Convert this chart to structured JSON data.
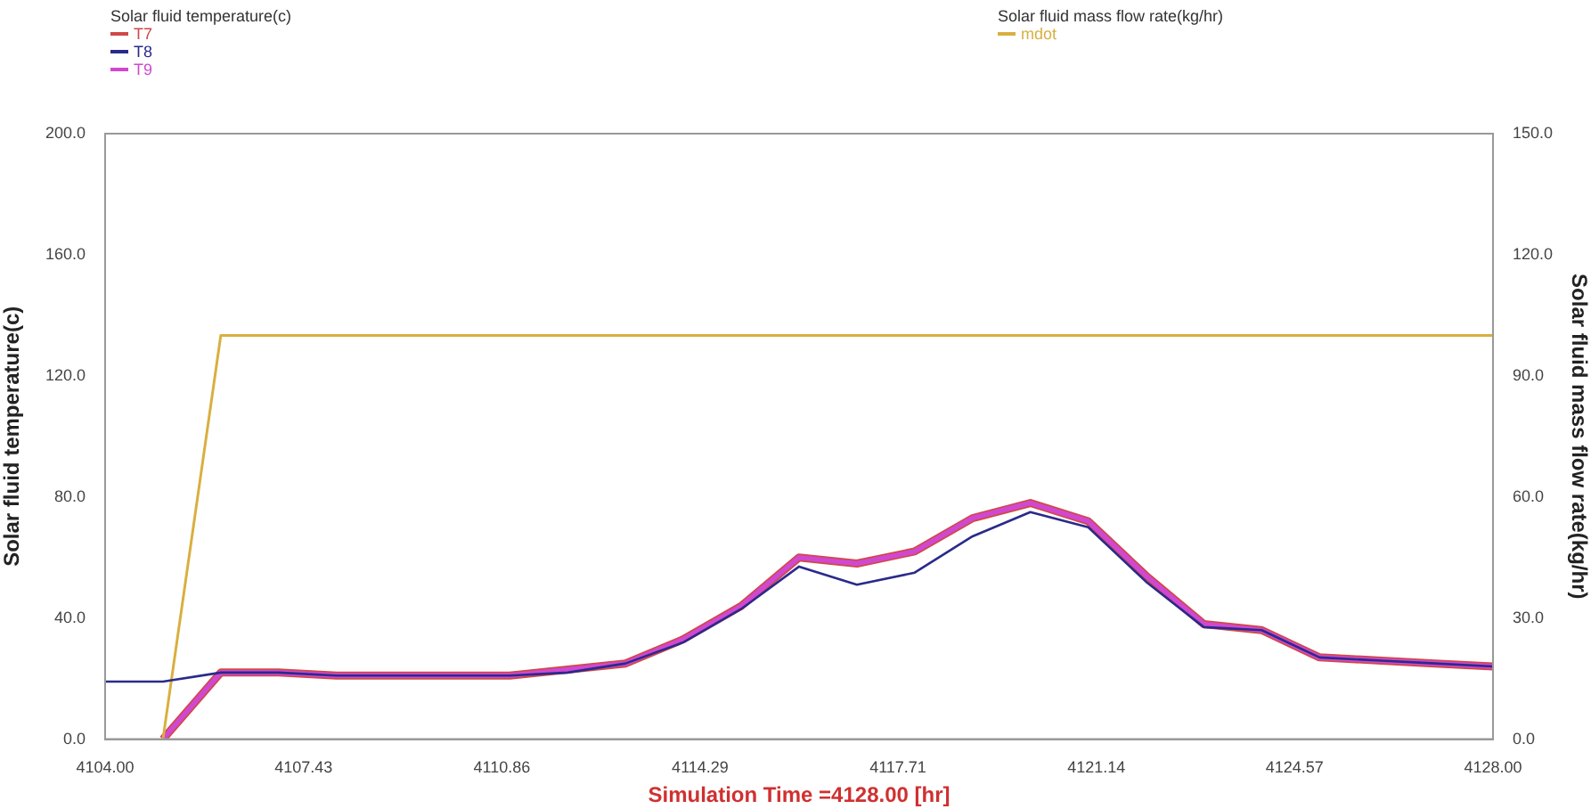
{
  "chart_data": {
    "type": "line",
    "xlabel": "Simulation Time =4128.00 [hr]",
    "ylabel": "Solar fluid temperature(c)",
    "y2label": "Solar fluid mass flow rate(kg/hr)",
    "legend_title": "Solar fluid temperature(c)",
    "annotations": [
      "Solar fluid mass flow rate(kg/hr)"
    ],
    "x": [
      4104,
      4105,
      4106,
      4107,
      4108,
      4109,
      4110,
      4111,
      4112,
      4113,
      4114,
      4115,
      4116,
      4117,
      4118,
      4119,
      4120,
      4121,
      4122,
      4123,
      4124,
      4125,
      4126,
      4127,
      4128
    ],
    "series": [
      {
        "name": "T7",
        "color": "#d04848",
        "values": [
          null,
          0,
          22,
          22,
          21,
          21,
          21,
          21,
          23,
          25,
          33,
          44,
          60,
          58,
          62,
          73,
          78,
          72,
          54,
          38,
          36,
          27,
          26,
          25,
          24
        ]
      },
      {
        "name": "T8",
        "color": "#2a2a8c",
        "values": [
          19,
          19,
          22,
          22,
          21,
          21,
          21,
          21,
          22,
          25,
          32,
          43,
          57,
          51,
          55,
          67,
          75,
          70,
          52,
          37,
          36,
          27,
          26,
          25,
          24
        ]
      },
      {
        "name": "T9",
        "color": "#d048d0",
        "values": [
          null,
          0,
          22,
          22,
          21,
          21,
          21,
          21,
          23,
          25,
          33,
          44,
          60,
          58,
          62,
          73,
          78,
          72,
          54,
          38,
          36,
          27,
          26,
          25,
          24
        ]
      },
      {
        "name": "mdot",
        "color": "#d8b040",
        "axis": "y2",
        "values": [
          null,
          0,
          100,
          100,
          100,
          100,
          100,
          100,
          100,
          100,
          100,
          100,
          100,
          100,
          100,
          100,
          100,
          100,
          100,
          100,
          100,
          100,
          100,
          100,
          100
        ]
      }
    ],
    "xlim": [
      4104,
      4128
    ],
    "xticks": [
      {
        "value": 4104,
        "label": "4104.00"
      },
      {
        "value": 4107.43,
        "label": "4107.43"
      },
      {
        "value": 4110.86,
        "label": "4110.86"
      },
      {
        "value": 4114.29,
        "label": "4114.29"
      },
      {
        "value": 4117.71,
        "label": "4117.71"
      },
      {
        "value": 4121.14,
        "label": "4121.14"
      },
      {
        "value": 4124.57,
        "label": "4124.57"
      },
      {
        "value": 4128,
        "label": "4128.00"
      }
    ],
    "ylim": [
      0,
      200
    ],
    "yticks": [
      {
        "value": 0,
        "label": "0.0"
      },
      {
        "value": 40,
        "label": "40.0"
      },
      {
        "value": 80,
        "label": "80.0"
      },
      {
        "value": 120,
        "label": "120.0"
      },
      {
        "value": 160,
        "label": "160.0"
      },
      {
        "value": 200,
        "label": "200.0"
      }
    ],
    "y2lim": [
      0,
      150
    ],
    "y2ticks": [
      {
        "value": 0,
        "label": "0.0"
      },
      {
        "value": 30,
        "label": "30.0"
      },
      {
        "value": 60,
        "label": "60.0"
      },
      {
        "value": 90,
        "label": "90.0"
      },
      {
        "value": 120,
        "label": "120.0"
      },
      {
        "value": 150,
        "label": "150.0"
      }
    ],
    "grid": false,
    "legend": "top",
    "marker": "none",
    "line_style": "solid"
  }
}
